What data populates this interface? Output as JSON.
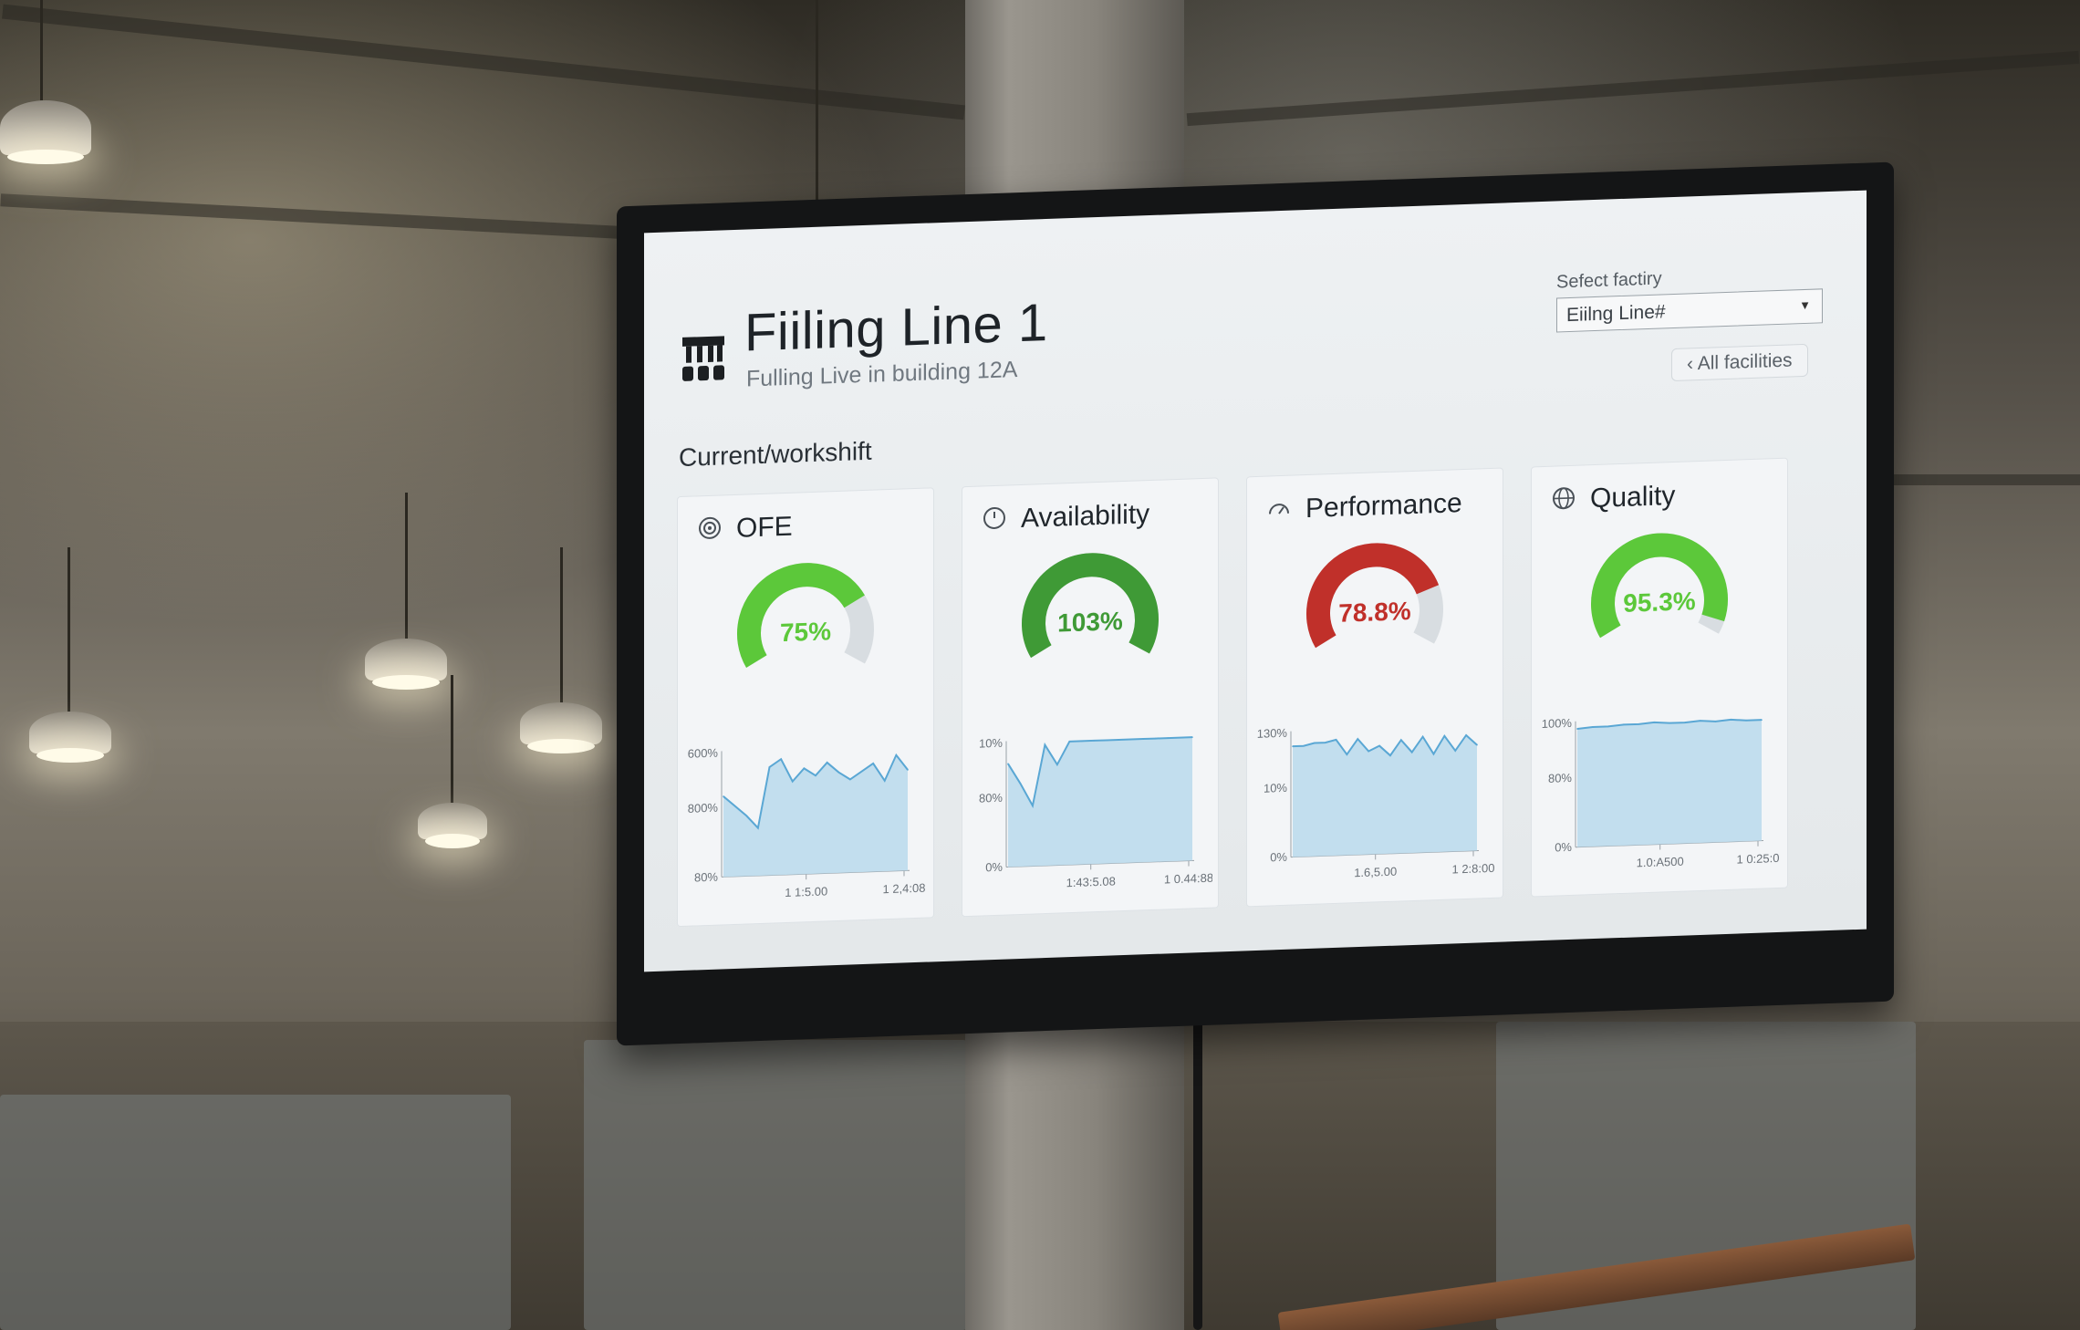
{
  "screen": {
    "title": "Fiiling Line 1",
    "subtitle": "Fulling Live in building 12A",
    "section_label": "Current/workshift",
    "factory_select": {
      "label": "Sefect factiry",
      "value": "Eiilng Line#"
    },
    "all_facilities_label": "All facilities",
    "back_glyph": "‹"
  },
  "colors": {
    "green_bright": "#5cc83a",
    "green_dark": "#3f9a36",
    "red": "#c0302a",
    "track": "#d8dde1",
    "chart_fill": "#bcdcec",
    "chart_line": "#5aa7d4"
  },
  "cards": [
    {
      "title": "OFE",
      "icon": "target-icon",
      "gauge_value": "75%",
      "gauge_fraction": 0.75,
      "gauge_color": "#5cc83a",
      "chart": {
        "y_ticks": [
          "600%",
          "800%",
          "80%"
        ],
        "x_ticks": [
          "1 1:5.00",
          "1 2,4:08"
        ],
        "values": [
          64,
          56,
          48,
          38,
          86,
          92,
          74,
          84,
          78,
          88,
          80,
          74,
          80,
          86,
          72,
          92,
          80
        ]
      }
    },
    {
      "title": "Availability",
      "icon": "clock-icon",
      "gauge_value": "103%",
      "gauge_fraction": 1.0,
      "gauge_color": "#3f9a36",
      "chart": {
        "y_ticks": [
          "10%",
          "80%",
          "0%"
        ],
        "x_ticks": [
          "1:43:5.08",
          "1 0.44:88"
        ],
        "values": [
          82,
          66,
          48,
          96,
          80,
          98,
          98,
          98,
          98,
          98,
          98,
          98,
          98,
          98,
          98,
          98
        ]
      }
    },
    {
      "title": "Performance",
      "icon": "speedometer-icon",
      "gauge_value": "78.8%",
      "gauge_fraction": 0.788,
      "gauge_color": "#c0302a",
      "chart": {
        "y_ticks": [
          "130%",
          "10%",
          "0%"
        ],
        "x_ticks": [
          "1.6,5.00",
          "1 2:8:00"
        ],
        "values": [
          88,
          88,
          90,
          90,
          92,
          80,
          92,
          82,
          86,
          78,
          90,
          80,
          92,
          78,
          92,
          80,
          92,
          84
        ]
      }
    },
    {
      "title": "Quality",
      "icon": "globe-icon",
      "gauge_value": "95.3%",
      "gauge_fraction": 0.953,
      "gauge_color": "#5cc83a",
      "chart": {
        "y_ticks": [
          "100%",
          "80%",
          "0%"
        ],
        "x_ticks": [
          "1.0:A500",
          "1 0:25:0"
        ],
        "values": [
          94,
          95,
          95,
          96,
          96,
          97,
          96,
          96,
          97,
          96,
          97,
          96,
          96
        ]
      }
    }
  ]
}
